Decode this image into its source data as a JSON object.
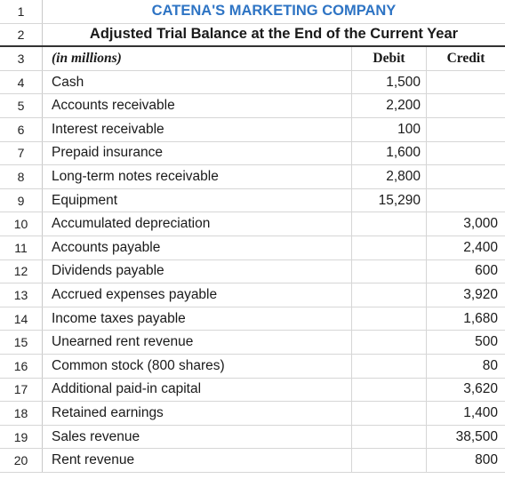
{
  "title": "CATENA'S MARKETING COMPANY",
  "subtitle": "Adjusted Trial Balance at the End of the Current Year",
  "units": "(in millions)",
  "col_headers": {
    "debit": "Debit",
    "credit": "Credit"
  },
  "row_numbers": [
    "1",
    "2",
    "3",
    "4",
    "5",
    "6",
    "7",
    "8",
    "9",
    "10",
    "11",
    "12",
    "13",
    "14",
    "15",
    "16",
    "17",
    "18",
    "19",
    "20"
  ],
  "accounts": [
    {
      "name": "Cash",
      "debit": "1,500",
      "credit": ""
    },
    {
      "name": "Accounts receivable",
      "debit": "2,200",
      "credit": ""
    },
    {
      "name": "Interest receivable",
      "debit": "100",
      "credit": ""
    },
    {
      "name": "Prepaid insurance",
      "debit": "1,600",
      "credit": ""
    },
    {
      "name": "Long-term notes receivable",
      "debit": "2,800",
      "credit": ""
    },
    {
      "name": "Equipment",
      "debit": "15,290",
      "credit": ""
    },
    {
      "name": "Accumulated depreciation",
      "debit": "",
      "credit": "3,000"
    },
    {
      "name": "Accounts payable",
      "debit": "",
      "credit": "2,400"
    },
    {
      "name": "Dividends payable",
      "debit": "",
      "credit": "600"
    },
    {
      "name": "Accrued expenses payable",
      "debit": "",
      "credit": "3,920"
    },
    {
      "name": "Income taxes payable",
      "debit": "",
      "credit": "1,680"
    },
    {
      "name": "Unearned rent revenue",
      "debit": "",
      "credit": "500"
    },
    {
      "name": "Common stock (800 shares)",
      "debit": "",
      "credit": "80"
    },
    {
      "name": "Additional paid-in capital",
      "debit": "",
      "credit": "3,620"
    },
    {
      "name": "Retained earnings",
      "debit": "",
      "credit": "1,400"
    },
    {
      "name": "Sales revenue",
      "debit": "",
      "credit": "38,500"
    },
    {
      "name": "Rent revenue",
      "debit": "",
      "credit": "800"
    }
  ]
}
